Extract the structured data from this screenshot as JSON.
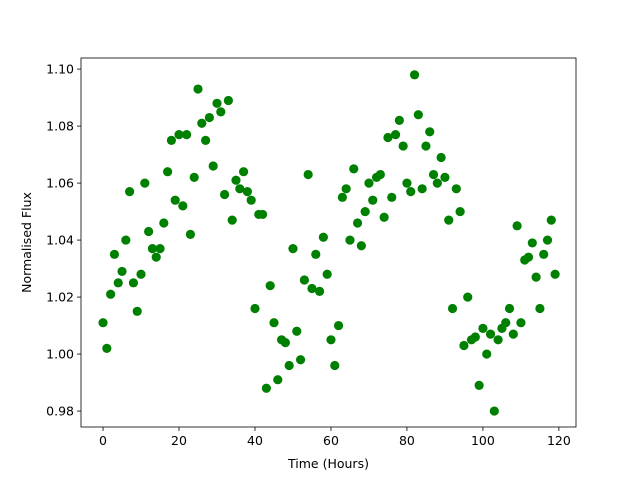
{
  "chart_data": {
    "type": "scatter",
    "title": "",
    "xlabel": "Time (Hours)",
    "ylabel": "Normalised Flux",
    "xlim": [
      -5.8,
      124.5
    ],
    "ylim": [
      0.9744,
      1.1039
    ],
    "xticks": [
      0,
      20,
      40,
      60,
      80,
      100,
      120
    ],
    "yticks": [
      0.98,
      1.0,
      1.02,
      1.04,
      1.06,
      1.08,
      1.1
    ],
    "xtick_labels": [
      "0",
      "20",
      "40",
      "60",
      "80",
      "100",
      "120"
    ],
    "ytick_labels": [
      "0.98",
      "1.00",
      "1.02",
      "1.04",
      "1.06",
      "1.08",
      "1.10"
    ],
    "grid": false,
    "marker_color": "#008000",
    "x": [
      0,
      1,
      2,
      3,
      4,
      5,
      6,
      7,
      8,
      9,
      10,
      11,
      12,
      13,
      14,
      15,
      16,
      17,
      18,
      19,
      20,
      21,
      22,
      23,
      24,
      25,
      26,
      27,
      28,
      29,
      30,
      31,
      32,
      33,
      34,
      35,
      36,
      37,
      38,
      39,
      40,
      41,
      42,
      43,
      44,
      45,
      46,
      47,
      48,
      49,
      50,
      51,
      52,
      53,
      54,
      55,
      56,
      57,
      58,
      59,
      60,
      61,
      62,
      63,
      64,
      65,
      66,
      67,
      68,
      69,
      70,
      71,
      72,
      73,
      74,
      75,
      76,
      77,
      78,
      79,
      80,
      81,
      82,
      83,
      84,
      85,
      86,
      87,
      88,
      89,
      90,
      91,
      92,
      93,
      94,
      95,
      96,
      97,
      98,
      99,
      100,
      101,
      102,
      103,
      104,
      105,
      106,
      107,
      108,
      109,
      110,
      111,
      112,
      113,
      114,
      115,
      116,
      117,
      118,
      119
    ],
    "y": [
      1.011,
      1.002,
      1.021,
      1.035,
      1.025,
      1.029,
      1.04,
      1.057,
      1.025,
      1.015,
      1.028,
      1.06,
      1.043,
      1.037,
      1.034,
      1.037,
      1.046,
      1.064,
      1.075,
      1.054,
      1.077,
      1.052,
      1.077,
      1.042,
      1.062,
      1.093,
      1.081,
      1.075,
      1.083,
      1.066,
      1.088,
      1.085,
      1.056,
      1.089,
      1.047,
      1.061,
      1.058,
      1.064,
      1.057,
      1.054,
      1.016,
      1.049,
      1.049,
      0.988,
      1.024,
      1.011,
      0.991,
      1.005,
      1.004,
      0.996,
      1.037,
      1.008,
      0.998,
      1.026,
      1.063,
      1.023,
      1.035,
      1.022,
      1.041,
      1.028,
      1.005,
      0.996,
      1.01,
      1.055,
      1.058,
      1.04,
      1.065,
      1.046,
      1.038,
      1.05,
      1.06,
      1.054,
      1.062,
      1.063,
      1.048,
      1.076,
      1.055,
      1.077,
      1.082,
      1.073,
      1.06,
      1.057,
      1.098,
      1.084,
      1.058,
      1.073,
      1.078,
      1.063,
      1.06,
      1.069,
      1.062,
      1.047,
      1.016,
      1.058,
      1.05,
      1.003,
      1.02,
      1.005,
      1.006,
      0.989,
      1.009,
      1.0,
      1.007,
      0.98,
      1.005,
      1.009,
      1.011,
      1.016,
      1.007,
      1.045,
      1.011,
      1.033,
      1.034,
      1.039,
      1.027,
      1.016,
      1.035,
      1.04,
      1.047,
      1.028
    ]
  }
}
